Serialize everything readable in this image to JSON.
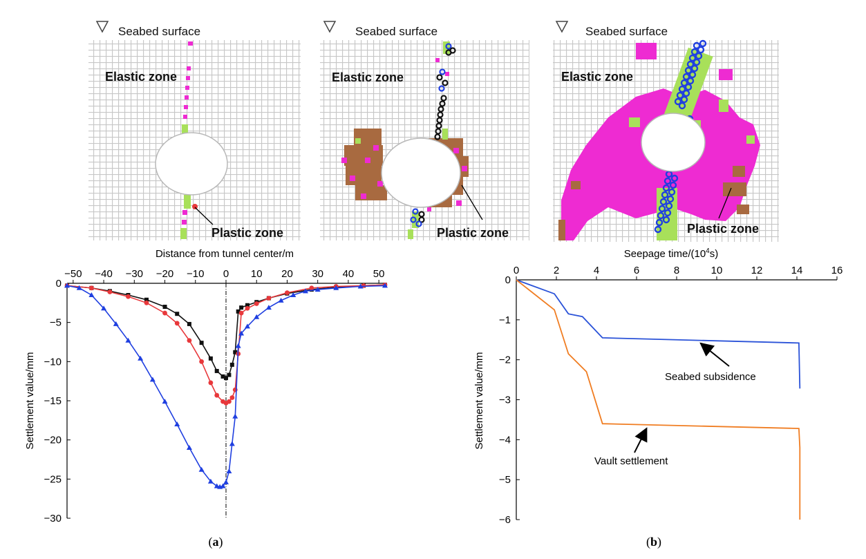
{
  "figure": {
    "caption_a": {
      "open": "(",
      "letter": "a",
      "close": ")"
    },
    "caption_b": {
      "open": "(",
      "letter": "b",
      "close": ")"
    }
  },
  "panels": [
    {
      "seabed_label": "Seabed surface",
      "elastic_label": "Elastic zone",
      "plastic_label": "Plastic zone"
    },
    {
      "seabed_label": "Seabed surface",
      "elastic_label": "Elastic zone",
      "plastic_label": "Plastic zone"
    },
    {
      "seabed_label": "Seabed surface",
      "elastic_label": "Elastic zone",
      "plastic_label": "Plastic zone"
    }
  ],
  "colors": {
    "black_series": "#111111",
    "red_series": "#e8383b",
    "blue_series": "#1f3fe0",
    "seabed_line": "#2a52d8",
    "vault_line": "#f07d22",
    "plastic_magenta": "#ee2bd2",
    "plastic_brown": "#a86a40",
    "plastic_green": "#a8e05a"
  },
  "chart_data": [
    {
      "type": "line",
      "id": "a",
      "title": "",
      "xlabel": "Distance from tunnel center/m",
      "ylabel": "Settlement value/mm",
      "xlim": [
        -52,
        52
      ],
      "ylim": [
        -30,
        0
      ],
      "xticks": [
        -50,
        -40,
        -30,
        -20,
        -10,
        0,
        10,
        20,
        30,
        40,
        50
      ],
      "yticks": [
        0,
        -5,
        -10,
        -15,
        -20,
        -25,
        -30
      ],
      "centerline_x": 0,
      "series": [
        {
          "name": "black-square",
          "marker": "square",
          "x": [
            -52,
            -44,
            -38,
            -32,
            -26,
            -20,
            -16,
            -12,
            -8,
            -5,
            -3,
            -1,
            0,
            1,
            2,
            3,
            4,
            5,
            7,
            10,
            14,
            20,
            28,
            36,
            45,
            52
          ],
          "y": [
            -0.3,
            -0.6,
            -1.0,
            -1.5,
            -2.1,
            -3.0,
            -3.9,
            -5.2,
            -7.6,
            -9.6,
            -11.2,
            -11.9,
            -12.1,
            -11.7,
            -10.4,
            -8.8,
            -3.6,
            -3.1,
            -2.8,
            -2.4,
            -1.9,
            -1.3,
            -0.8,
            -0.5,
            -0.3,
            -0.2
          ]
        },
        {
          "name": "red-circle",
          "marker": "circle",
          "x": [
            -52,
            -44,
            -38,
            -32,
            -26,
            -20,
            -16,
            -12,
            -8,
            -5,
            -3,
            -1,
            0,
            1,
            2,
            3,
            4,
            5,
            7,
            10,
            14,
            20,
            28,
            36,
            45,
            52
          ],
          "y": [
            -0.3,
            -0.6,
            -1.1,
            -1.7,
            -2.5,
            -3.8,
            -5.1,
            -7.3,
            -10.0,
            -12.7,
            -14.3,
            -15.1,
            -15.3,
            -15.1,
            -14.6,
            -13.6,
            -9.0,
            -3.8,
            -3.2,
            -2.6,
            -1.9,
            -1.2,
            -0.6,
            -0.4,
            -0.3,
            -0.2
          ]
        },
        {
          "name": "blue-triangle",
          "marker": "triangle",
          "x": [
            -52,
            -48,
            -44,
            -40,
            -36,
            -32,
            -28,
            -24,
            -20,
            -16,
            -12,
            -8,
            -5,
            -3,
            -2,
            -1,
            0,
            1,
            2,
            3,
            4,
            5,
            7,
            10,
            14,
            18,
            22,
            26,
            30,
            36,
            44,
            52
          ],
          "y": [
            -0.3,
            -0.6,
            -1.5,
            -3.2,
            -5.2,
            -7.3,
            -9.6,
            -12.3,
            -15.1,
            -18.0,
            -21.0,
            -23.8,
            -25.3,
            -25.9,
            -26.0,
            -25.9,
            -25.4,
            -24.0,
            -20.5,
            -17.0,
            -8.0,
            -6.4,
            -5.5,
            -4.3,
            -3.1,
            -2.2,
            -1.5,
            -1.0,
            -0.8,
            -0.6,
            -0.4,
            -0.3
          ]
        }
      ]
    },
    {
      "type": "line",
      "id": "b",
      "title": "",
      "xlabel_main": "Seepage time/(10",
      "xlabel_sup": "4",
      "xlabel_end": "s)",
      "ylabel": "Settlement value/mm",
      "xlim": [
        0,
        16
      ],
      "ylim": [
        -6,
        0
      ],
      "xticks": [
        0,
        2,
        4,
        6,
        8,
        10,
        12,
        14,
        16
      ],
      "yticks": [
        0,
        -1,
        -2,
        -3,
        -4,
        -5,
        -6
      ],
      "series": [
        {
          "name": "Seabed subsidence",
          "x": [
            0,
            1.9,
            2.6,
            3.3,
            4.3,
            14.1,
            14.15
          ],
          "y": [
            0,
            -0.35,
            -0.85,
            -0.92,
            -1.45,
            -1.58,
            -2.72
          ]
        },
        {
          "name": "Vault settlement",
          "x": [
            0,
            1.9,
            2.6,
            3.5,
            4.3,
            14.1,
            14.15,
            14.15
          ],
          "y": [
            0,
            -0.75,
            -1.85,
            -2.3,
            -3.6,
            -3.72,
            -4.2,
            -6.0
          ]
        }
      ],
      "annotations": [
        {
          "text": "Seabed subsidence",
          "x": 9.2,
          "y": -1.52
        },
        {
          "text": "Vault settlement",
          "x": 6.5,
          "y": -3.65
        }
      ]
    }
  ]
}
